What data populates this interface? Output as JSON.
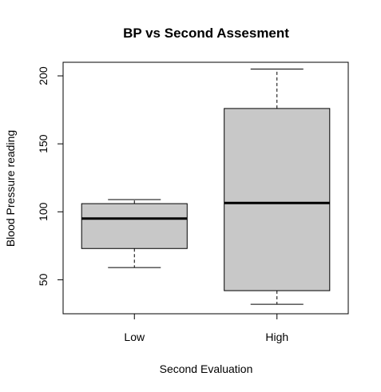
{
  "chart_data": {
    "type": "boxplot",
    "title": "BP vs Second Assesment",
    "xlabel": "Second Evaluation",
    "ylabel": "Blood Pressure reading",
    "ylim": [
      25,
      210
    ],
    "yticks": [
      50,
      100,
      150,
      200
    ],
    "grid": false,
    "categories": [
      "Low",
      "High"
    ],
    "boxes": [
      {
        "category": "Low",
        "min": 59,
        "q1": 73,
        "median": 95,
        "q3": 106,
        "max": 109
      },
      {
        "category": "High",
        "min": 32,
        "q1": 42,
        "median": 106.5,
        "q3": 176,
        "max": 205
      }
    ],
    "box_fill": "#c8c8c8",
    "line_color": "#000000"
  }
}
